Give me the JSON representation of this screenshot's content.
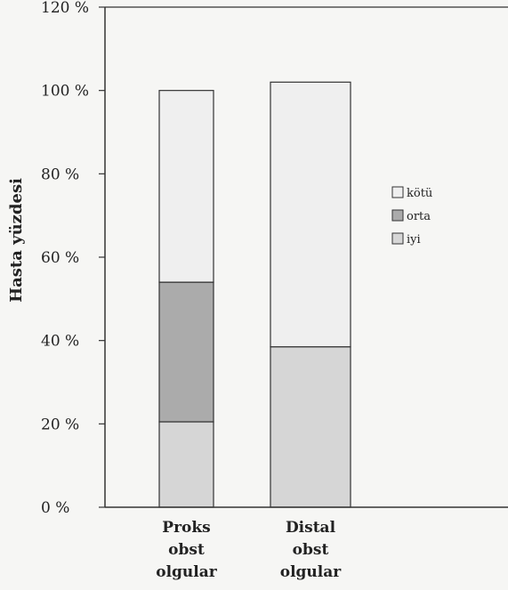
{
  "chart_data": {
    "type": "bar",
    "stacked": true,
    "title": "",
    "ylabel": "Hasta yüzdesi",
    "xlabel": "",
    "ylim": [
      0,
      120
    ],
    "yticks": [
      {
        "value": 0,
        "label": "0  %"
      },
      {
        "value": 20,
        "label": "20 %"
      },
      {
        "value": 40,
        "label": "40 %"
      },
      {
        "value": 60,
        "label": "60 %"
      },
      {
        "value": 80,
        "label": "80 %"
      },
      {
        "value": 100,
        "label": "100 %"
      },
      {
        "value": 120,
        "label": "120 %"
      }
    ],
    "categories": [
      [
        "Proks",
        "obst",
        "olgular"
      ],
      [
        "Distal",
        "obst",
        "olgular"
      ]
    ],
    "series": [
      {
        "name": "iyi",
        "values": [
          20.5,
          38.5
        ],
        "color": "#d6d6d6"
      },
      {
        "name": "orta",
        "values": [
          33.5,
          0
        ],
        "color": "#ababab"
      },
      {
        "name": "kötü",
        "values": [
          46,
          63.5
        ],
        "color": "#efefef"
      }
    ],
    "legend": {
      "placement": "right",
      "order": [
        "kötü",
        "orta",
        "iyi"
      ]
    },
    "grid": false
  }
}
